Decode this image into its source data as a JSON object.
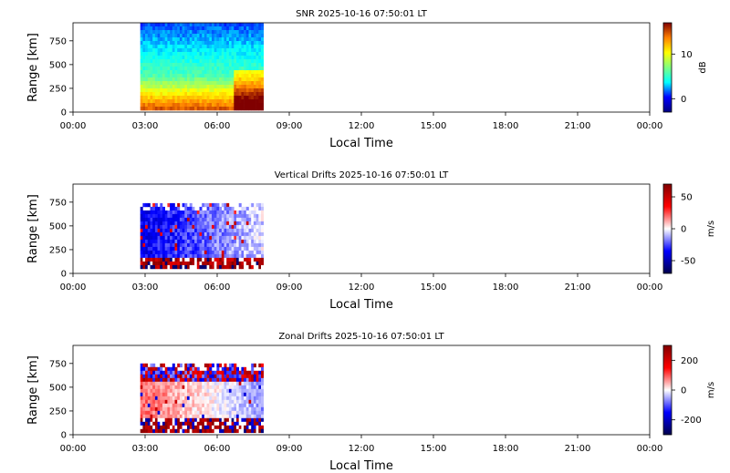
{
  "chart_data": [
    {
      "type": "heatmap",
      "title": "SNR 2025-10-16 07:50:01 LT",
      "xlabel": "Local Time",
      "ylabel": "Range [km]",
      "x_ticks": [
        "00:00",
        "03:00",
        "06:00",
        "09:00",
        "12:00",
        "15:00",
        "18:00",
        "21:00",
        "00:00"
      ],
      "xlim_hours": [
        0,
        24
      ],
      "y_ticks": [
        0,
        250,
        500,
        750
      ],
      "ylim": [
        0,
        940
      ],
      "data_coverage_hours": [
        2.8,
        7.9
      ],
      "data_coverage_range_km": [
        50,
        940
      ],
      "colorbar": {
        "label": "dB",
        "ticks": [
          0,
          10
        ],
        "vmin": -3,
        "vmax": 17,
        "colormap": "jet",
        "colors": [
          "#000080",
          "#0000ff",
          "#00ffff",
          "#80ff80",
          "#ffff00",
          "#ff8000",
          "#800000"
        ]
      }
    },
    {
      "type": "heatmap",
      "title": "Vertical Drifts 2025-10-16 07:50:01 LT",
      "xlabel": "Local Time",
      "ylabel": "Range [km]",
      "x_ticks": [
        "00:00",
        "03:00",
        "06:00",
        "09:00",
        "12:00",
        "15:00",
        "18:00",
        "21:00",
        "00:00"
      ],
      "xlim_hours": [
        0,
        24
      ],
      "y_ticks": [
        0,
        250,
        500,
        750
      ],
      "ylim": [
        0,
        940
      ],
      "data_coverage_hours": [
        2.8,
        7.9
      ],
      "data_coverage_range_km": [
        50,
        740
      ],
      "colorbar": {
        "label": "m/s",
        "ticks": [
          -50,
          0,
          50
        ],
        "vmin": -70,
        "vmax": 70,
        "colormap": "seismic",
        "colors": [
          "#00004c",
          "#0000ff",
          "#ffffff",
          "#ff0000",
          "#800000"
        ]
      }
    },
    {
      "type": "heatmap",
      "title": "Zonal Drifts 2025-10-16 07:50:01 LT",
      "xlabel": "Local Time",
      "ylabel": "Range [km]",
      "x_ticks": [
        "00:00",
        "03:00",
        "06:00",
        "09:00",
        "12:00",
        "15:00",
        "18:00",
        "21:00",
        "00:00"
      ],
      "xlim_hours": [
        0,
        24
      ],
      "y_ticks": [
        0,
        250,
        500,
        750
      ],
      "ylim": [
        0,
        940
      ],
      "data_coverage_hours": [
        2.8,
        7.9
      ],
      "data_coverage_range_km": [
        50,
        750
      ],
      "colorbar": {
        "label": "m/s",
        "ticks": [
          -200,
          0,
          200
        ],
        "vmin": -300,
        "vmax": 300,
        "colormap": "seismic",
        "colors": [
          "#00004c",
          "#0000ff",
          "#ffffff",
          "#ff0000",
          "#800000"
        ]
      }
    }
  ]
}
